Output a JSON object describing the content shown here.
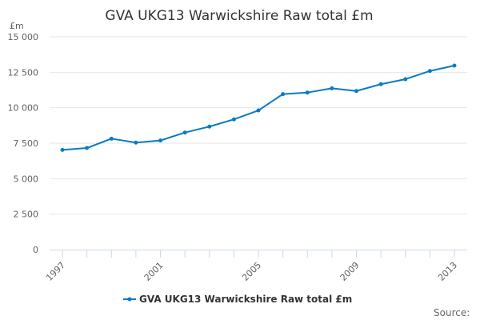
{
  "chart_data": {
    "type": "line",
    "title": "GVA UKG13 Warwickshire Raw total £m",
    "ylabel": "£m",
    "xlabel": "",
    "x": [
      1997,
      1998,
      1999,
      2000,
      2001,
      2002,
      2003,
      2004,
      2005,
      2006,
      2007,
      2008,
      2009,
      2010,
      2011,
      2012,
      2013
    ],
    "x_tick_labels": [
      "1997",
      "2001",
      "2005",
      "2009",
      "2013"
    ],
    "y_ticks": [
      0,
      2500,
      5000,
      7500,
      10000,
      12500,
      15000
    ],
    "y_tick_labels": [
      "0",
      "2 500",
      "5 000",
      "7 500",
      "10 000",
      "12 500",
      "15 000"
    ],
    "ylim": [
      0,
      15000
    ],
    "grid": true,
    "legend_position": "bottom",
    "series": [
      {
        "name": "GVA UKG13 Warwickshire Raw total £m",
        "color": "#0a7bc2",
        "values": [
          7030,
          7160,
          7820,
          7540,
          7690,
          8250,
          8670,
          9180,
          9810,
          10960,
          11070,
          11370,
          11180,
          11660,
          12010,
          12590,
          12970
        ]
      }
    ]
  },
  "source_label": "Source:"
}
